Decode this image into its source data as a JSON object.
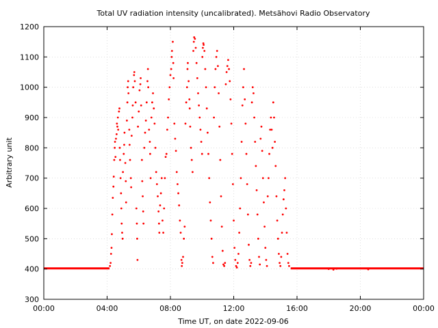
{
  "chart_data": {
    "type": "scatter",
    "title": "Total UV radiation intensity (uncalibrated). Metsähovi Radio Observatory",
    "xlabel": "Time UT, on date 2022-09-06",
    "ylabel": "Arbitrary unit",
    "xlim": [
      0,
      24
    ],
    "ylim": [
      300,
      1200
    ],
    "x_ticks": [
      0,
      4,
      8,
      12,
      16,
      20,
      24
    ],
    "x_tick_labels": [
      "00:00",
      "04:00",
      "08:00",
      "12:00",
      "16:00",
      "20:00",
      "00:00"
    ],
    "y_ticks": [
      300,
      400,
      500,
      600,
      700,
      800,
      900,
      1000,
      1100,
      1200
    ],
    "y_tick_labels": [
      "300",
      "400",
      "500",
      "600",
      "700",
      "800",
      "900",
      "1000",
      "1100",
      "1200"
    ],
    "grid": true,
    "marker_color": "#ff0000",
    "series": [
      {
        "baseline_segments": [
          {
            "x_start": 0.0,
            "x_end": 4.15,
            "y": 402
          },
          {
            "x_start": 15.6,
            "x_end": 24.0,
            "y": 402
          }
        ],
        "points": [
          [
            4.18,
            410
          ],
          [
            4.22,
            420
          ],
          [
            4.25,
            450
          ],
          [
            4.28,
            470
          ],
          [
            4.3,
            515
          ],
          [
            4.33,
            580
          ],
          [
            4.36,
            635
          ],
          [
            4.4,
            672
          ],
          [
            4.42,
            705
          ],
          [
            4.45,
            760
          ],
          [
            4.48,
            800
          ],
          [
            4.5,
            820
          ],
          [
            4.53,
            770
          ],
          [
            4.56,
            830
          ],
          [
            4.6,
            845
          ],
          [
            4.62,
            880
          ],
          [
            4.65,
            870
          ],
          [
            4.68,
            900
          ],
          [
            4.7,
            860
          ],
          [
            4.75,
            920
          ],
          [
            4.78,
            930
          ],
          [
            4.8,
            800
          ],
          [
            4.82,
            760
          ],
          [
            4.85,
            700
          ],
          [
            4.88,
            650
          ],
          [
            4.9,
            600
          ],
          [
            4.92,
            550
          ],
          [
            4.95,
            520
          ],
          [
            4.98,
            500
          ],
          [
            5.0,
            720
          ],
          [
            5.05,
            780
          ],
          [
            5.08,
            810
          ],
          [
            5.1,
            850
          ],
          [
            5.15,
            750
          ],
          [
            5.18,
            690
          ],
          [
            5.2,
            620
          ],
          [
            5.25,
            890
          ],
          [
            5.28,
            950
          ],
          [
            5.3,
            1000
          ],
          [
            5.33,
            1020
          ],
          [
            5.35,
            980
          ],
          [
            5.4,
            860
          ],
          [
            5.42,
            810
          ],
          [
            5.45,
            760
          ],
          [
            5.5,
            700
          ],
          [
            5.52,
            670
          ],
          [
            5.55,
            840
          ],
          [
            5.6,
            900
          ],
          [
            5.62,
            940
          ],
          [
            5.65,
            1000
          ],
          [
            5.7,
            1040
          ],
          [
            5.72,
            1050
          ],
          [
            5.75,
            1020
          ],
          [
            5.8,
            950
          ],
          [
            5.85,
            600
          ],
          [
            5.88,
            550
          ],
          [
            5.9,
            500
          ],
          [
            5.92,
            430
          ],
          [
            5.95,
            870
          ],
          [
            6.0,
            920
          ],
          [
            6.05,
            990
          ],
          [
            6.1,
            1010
          ],
          [
            6.12,
            1030
          ],
          [
            6.15,
            940
          ],
          [
            6.2,
            760
          ],
          [
            6.22,
            690
          ],
          [
            6.25,
            640
          ],
          [
            6.28,
            590
          ],
          [
            6.3,
            550
          ],
          [
            6.35,
            800
          ],
          [
            6.4,
            850
          ],
          [
            6.45,
            890
          ],
          [
            6.5,
            950
          ],
          [
            6.55,
            1020
          ],
          [
            6.58,
            1060
          ],
          [
            6.6,
            1000
          ],
          [
            6.65,
            860
          ],
          [
            6.7,
            820
          ],
          [
            6.72,
            780
          ],
          [
            6.75,
            700
          ],
          [
            6.8,
            900
          ],
          [
            6.85,
            950
          ],
          [
            6.9,
            980
          ],
          [
            6.95,
            930
          ],
          [
            7.0,
            880
          ],
          [
            7.05,
            800
          ],
          [
            7.1,
            720
          ],
          [
            7.15,
            680
          ],
          [
            7.2,
            640
          ],
          [
            7.25,
            590
          ],
          [
            7.28,
            550
          ],
          [
            7.3,
            520
          ],
          [
            7.35,
            610
          ],
          [
            7.4,
            650
          ],
          [
            7.45,
            700
          ],
          [
            7.5,
            560
          ],
          [
            7.55,
            520
          ],
          [
            7.6,
            600
          ],
          [
            7.65,
            700
          ],
          [
            7.7,
            770
          ],
          [
            7.75,
            780
          ],
          [
            7.8,
            860
          ],
          [
            7.85,
            900
          ],
          [
            7.9,
            960
          ],
          [
            7.95,
            1000
          ],
          [
            8.0,
            1040
          ],
          [
            8.05,
            1060
          ],
          [
            8.08,
            1100
          ],
          [
            8.1,
            1120
          ],
          [
            8.15,
            1150
          ],
          [
            8.18,
            1080
          ],
          [
            8.2,
            1030
          ],
          [
            8.25,
            880
          ],
          [
            8.3,
            830
          ],
          [
            8.35,
            790
          ],
          [
            8.4,
            720
          ],
          [
            8.45,
            680
          ],
          [
            8.5,
            650
          ],
          [
            8.55,
            610
          ],
          [
            8.6,
            560
          ],
          [
            8.65,
            520
          ],
          [
            8.7,
            430
          ],
          [
            8.72,
            410
          ],
          [
            8.75,
            420
          ],
          [
            8.8,
            440
          ],
          [
            8.85,
            500
          ],
          [
            8.9,
            540
          ],
          [
            8.95,
            880
          ],
          [
            9.0,
            950
          ],
          [
            9.05,
            1000
          ],
          [
            9.08,
            1060
          ],
          [
            9.1,
            1080
          ],
          [
            9.15,
            1020
          ],
          [
            9.2,
            960
          ],
          [
            9.22,
            930
          ],
          [
            9.25,
            870
          ],
          [
            9.3,
            800
          ],
          [
            9.35,
            760
          ],
          [
            9.4,
            720
          ],
          [
            9.45,
            1120
          ],
          [
            9.48,
            1150
          ],
          [
            9.5,
            1165
          ],
          [
            9.55,
            1160
          ],
          [
            9.6,
            1130
          ],
          [
            9.65,
            1080
          ],
          [
            9.7,
            1030
          ],
          [
            9.75,
            980
          ],
          [
            9.8,
            940
          ],
          [
            9.85,
            900
          ],
          [
            9.9,
            860
          ],
          [
            9.95,
            820
          ],
          [
            10.0,
            780
          ],
          [
            10.02,
            1100
          ],
          [
            10.05,
            1130
          ],
          [
            10.08,
            1145
          ],
          [
            10.1,
            1140
          ],
          [
            10.15,
            1120
          ],
          [
            10.2,
            1060
          ],
          [
            10.25,
            1000
          ],
          [
            10.3,
            930
          ],
          [
            10.35,
            850
          ],
          [
            10.4,
            780
          ],
          [
            10.45,
            700
          ],
          [
            10.5,
            620
          ],
          [
            10.55,
            560
          ],
          [
            10.6,
            500
          ],
          [
            10.65,
            440
          ],
          [
            10.7,
            420
          ],
          [
            10.75,
            900
          ],
          [
            10.8,
            1000
          ],
          [
            10.85,
            1060
          ],
          [
            10.9,
            1100
          ],
          [
            10.95,
            1120
          ],
          [
            11.0,
            1070
          ],
          [
            11.05,
            980
          ],
          [
            11.1,
            870
          ],
          [
            11.15,
            760
          ],
          [
            11.2,
            640
          ],
          [
            11.25,
            540
          ],
          [
            11.3,
            460
          ],
          [
            11.35,
            415
          ],
          [
            11.4,
            410
          ],
          [
            11.45,
            420
          ],
          [
            11.5,
            1010
          ],
          [
            11.55,
            1050
          ],
          [
            11.6,
            1070
          ],
          [
            11.65,
            1090
          ],
          [
            11.7,
            1060
          ],
          [
            11.75,
            1020
          ],
          [
            11.8,
            960
          ],
          [
            11.85,
            880
          ],
          [
            11.9,
            780
          ],
          [
            11.95,
            680
          ],
          [
            12.0,
            560
          ],
          [
            12.05,
            470
          ],
          [
            12.1,
            430
          ],
          [
            12.15,
            410
          ],
          [
            12.2,
            405
          ],
          [
            12.25,
            420
          ],
          [
            12.3,
            450
          ],
          [
            12.35,
            520
          ],
          [
            12.4,
            600
          ],
          [
            12.45,
            700
          ],
          [
            12.5,
            820
          ],
          [
            12.55,
            940
          ],
          [
            12.6,
            1000
          ],
          [
            12.65,
            1060
          ],
          [
            12.7,
            960
          ],
          [
            12.75,
            880
          ],
          [
            12.8,
            780
          ],
          [
            12.85,
            680
          ],
          [
            12.9,
            580
          ],
          [
            12.95,
            480
          ],
          [
            13.0,
            430
          ],
          [
            13.05,
            410
          ],
          [
            13.1,
            420
          ],
          [
            13.15,
            950
          ],
          [
            13.2,
            1000
          ],
          [
            13.25,
            980
          ],
          [
            13.3,
            900
          ],
          [
            13.35,
            820
          ],
          [
            13.4,
            740
          ],
          [
            13.45,
            660
          ],
          [
            13.5,
            580
          ],
          [
            13.55,
            500
          ],
          [
            13.6,
            440
          ],
          [
            13.65,
            415
          ],
          [
            13.7,
            830
          ],
          [
            13.75,
            870
          ],
          [
            13.8,
            790
          ],
          [
            13.85,
            700
          ],
          [
            13.9,
            620
          ],
          [
            13.95,
            540
          ],
          [
            14.0,
            470
          ],
          [
            14.05,
            430
          ],
          [
            14.1,
            410
          ],
          [
            14.15,
            640
          ],
          [
            14.2,
            700
          ],
          [
            14.25,
            780
          ],
          [
            14.3,
            860
          ],
          [
            14.35,
            900
          ],
          [
            14.4,
            860
          ],
          [
            14.45,
            800
          ],
          [
            14.5,
            950
          ],
          [
            14.55,
            900
          ],
          [
            14.6,
            820
          ],
          [
            14.65,
            740
          ],
          [
            14.7,
            640
          ],
          [
            14.75,
            560
          ],
          [
            14.8,
            500
          ],
          [
            14.85,
            450
          ],
          [
            14.9,
            420
          ],
          [
            14.95,
            410
          ],
          [
            15.0,
            440
          ],
          [
            15.05,
            520
          ],
          [
            15.1,
            580
          ],
          [
            15.15,
            630
          ],
          [
            15.2,
            660
          ],
          [
            15.25,
            700
          ],
          [
            15.3,
            600
          ],
          [
            15.35,
            520
          ],
          [
            15.4,
            450
          ],
          [
            15.45,
            420
          ],
          [
            15.5,
            410
          ],
          [
            18.0,
            400
          ],
          [
            18.3,
            398
          ],
          [
            18.5,
            401
          ],
          [
            20.5,
            399
          ]
        ]
      }
    ]
  }
}
